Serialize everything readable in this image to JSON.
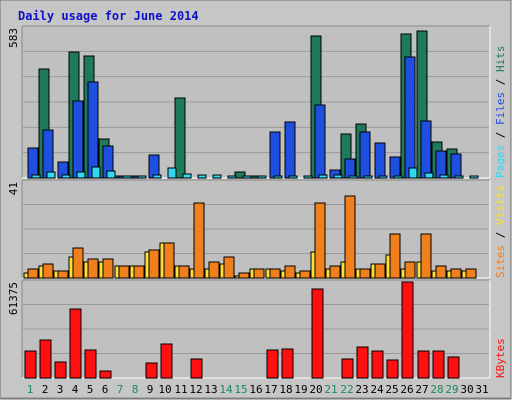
{
  "chart_data": {
    "type": "bar",
    "title": "Daily usage for June 2014",
    "categories": [
      "1",
      "2",
      "3",
      "4",
      "5",
      "6",
      "7",
      "8",
      "9",
      "10",
      "11",
      "12",
      "13",
      "14",
      "15",
      "16",
      "17",
      "18",
      "19",
      "20",
      "21",
      "22",
      "23",
      "24",
      "25",
      "26",
      "27",
      "28",
      "29",
      "30",
      "31"
    ],
    "weekend_days": [
      "1",
      "7",
      "8",
      "14",
      "15",
      "21",
      "22",
      "28",
      "29"
    ],
    "panels": [
      {
        "id": "top",
        "ymax_label": "583",
        "ylim": [
          0,
          583
        ],
        "legend": [
          "Pages",
          "Files",
          "Hits"
        ],
        "series": [
          {
            "name": "Hits",
            "color": "#1e7a5a",
            "values": [
              0,
              422,
              0,
              490,
              475,
              152,
              8,
              8,
              0,
              0,
              312,
              0,
              0,
              0,
              24,
              9,
              0,
              0,
              0,
              553,
              0,
              171,
              211,
              0,
              0,
              560,
              573,
              138,
              112,
              0,
              0
            ]
          },
          {
            "name": "Files",
            "color": "#1f4fe0",
            "values": [
              115,
              188,
              61,
              300,
              373,
              125,
              8,
              8,
              90,
              0,
              0,
              0,
              0,
              0,
              0,
              0,
              180,
              218,
              0,
              282,
              30,
              72,
              178,
              137,
              80,
              469,
              221,
              103,
              93,
              0,
              0
            ]
          },
          {
            "name": "Pages",
            "color": "#30d8f0",
            "values": [
              10,
              24,
              10,
              22,
              43,
              26,
              7,
              7,
              13,
              38,
              14,
              12,
              10,
              8,
              7,
              6,
              8,
              9,
              6,
              13,
              12,
              6,
              8,
              8,
              6,
              40,
              20,
              10,
              8,
              6,
              0
            ]
          }
        ]
      },
      {
        "id": "middle",
        "ymax_label": "41",
        "ylim": [
          0,
          41
        ],
        "legend": [
          "Sites",
          "Visits"
        ],
        "series": [
          {
            "name": "Visits",
            "color": "#ffe030",
            "values": [
              2,
              5,
              3,
              9,
              7,
              7,
              5,
              5,
              11,
              15,
              5,
              4,
              4,
              6,
              1,
              4,
              4,
              3,
              2,
              11,
              4,
              7,
              4,
              6,
              10,
              4,
              7,
              3,
              3,
              3,
              0
            ]
          },
          {
            "name": "Sites",
            "color": "#f0801e",
            "values": [
              4,
              6,
              3,
              13,
              8,
              8,
              5,
              5,
              12,
              15,
              5,
              32,
              7,
              9,
              2,
              4,
              4,
              5,
              3,
              32,
              5,
              35,
              4,
              6,
              19,
              7,
              19,
              5,
              4,
              4,
              0
            ]
          }
        ]
      },
      {
        "id": "bottom",
        "ymax_label": "61375",
        "ylim": [
          0,
          61375
        ],
        "legend": [
          "KBytes"
        ],
        "series": [
          {
            "name": "KBytes",
            "color": "#ff1010",
            "values": [
              17000,
              24000,
              10500,
              44000,
              18000,
              4500,
              0,
              0,
              9500,
              22000,
              0,
              12000,
              0,
              0,
              0,
              0,
              18000,
              18700,
              0,
              57000,
              0,
              12000,
              19500,
              17500,
              11500,
              61375,
              17500,
              17500,
              13500,
              0,
              0
            ]
          }
        ]
      }
    ]
  }
}
